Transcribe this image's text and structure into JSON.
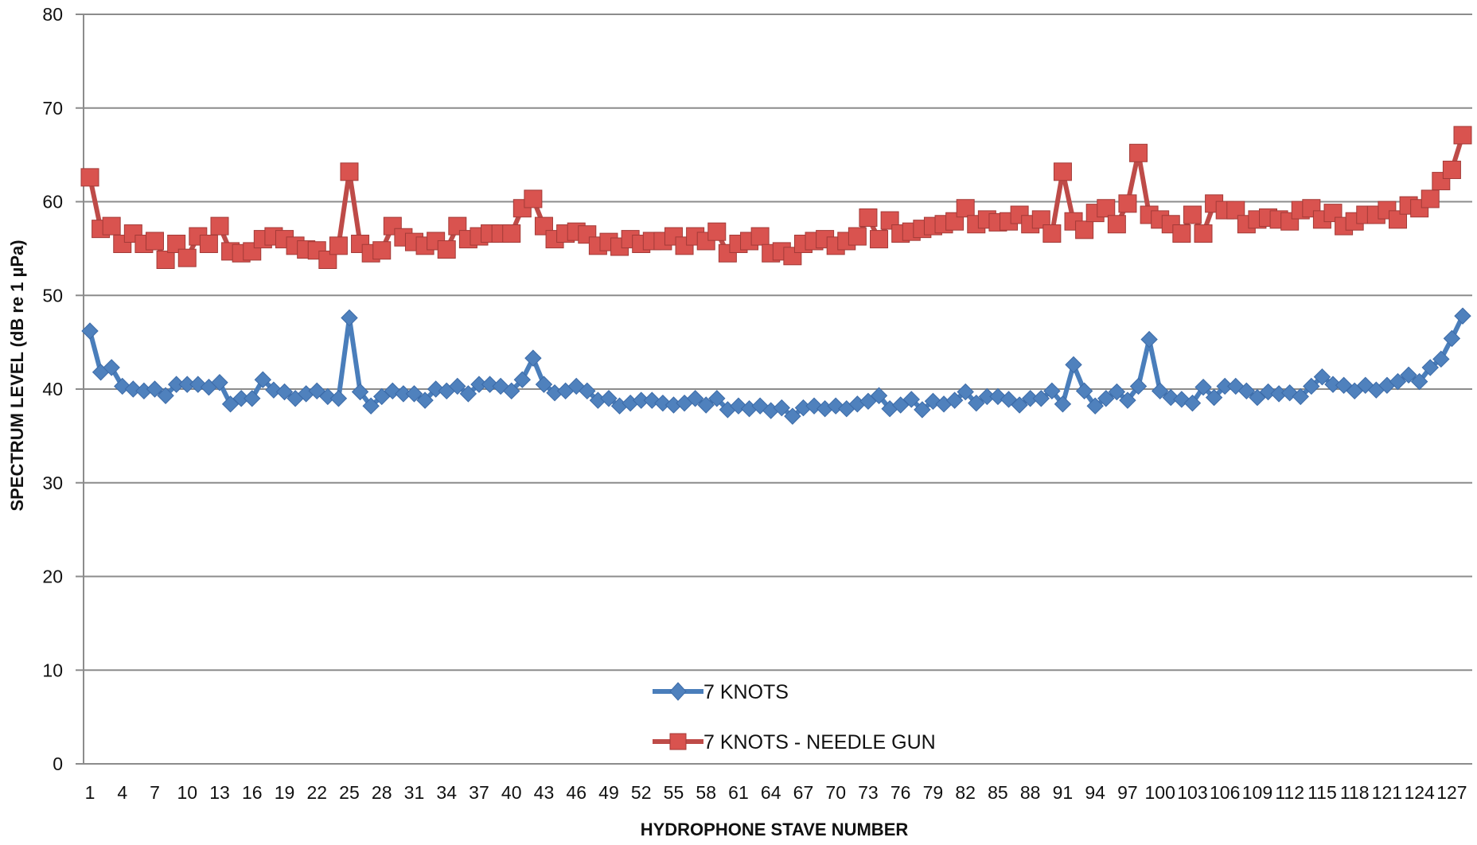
{
  "chart_data": {
    "type": "line",
    "title": "",
    "xlabel": "HYDROPHONE STAVE NUMBER",
    "ylabel": "SPECTRUM LEVEL (dB re 1 µPa)",
    "ylim": [
      0,
      80
    ],
    "yticks": [
      0,
      10,
      20,
      30,
      40,
      50,
      60,
      70,
      80
    ],
    "grid": "horizontal major gridlines",
    "legend_position": "bottom-center inside plot",
    "x": [
      1,
      2,
      3,
      4,
      5,
      6,
      7,
      8,
      9,
      10,
      11,
      12,
      13,
      14,
      15,
      16,
      17,
      18,
      19,
      20,
      21,
      22,
      23,
      24,
      25,
      26,
      27,
      28,
      29,
      30,
      31,
      32,
      33,
      34,
      35,
      36,
      37,
      38,
      39,
      40,
      41,
      42,
      43,
      44,
      45,
      46,
      47,
      48,
      49,
      50,
      51,
      52,
      53,
      54,
      55,
      56,
      57,
      58,
      59,
      60,
      61,
      62,
      63,
      64,
      65,
      66,
      67,
      68,
      69,
      70,
      71,
      72,
      73,
      74,
      75,
      76,
      77,
      78,
      79,
      80,
      81,
      82,
      83,
      84,
      85,
      86,
      87,
      88,
      89,
      90,
      91,
      92,
      93,
      94,
      95,
      96,
      97,
      98,
      99,
      100,
      101,
      102,
      103,
      104,
      105,
      106,
      107,
      108,
      109,
      110,
      111,
      112,
      113,
      114,
      115,
      116,
      117,
      118,
      119,
      120,
      121,
      122,
      123,
      124,
      125,
      126,
      127,
      128
    ],
    "x_tick_labels": [
      "1",
      "4",
      "7",
      "10",
      "13",
      "16",
      "19",
      "22",
      "25",
      "28",
      "31",
      "34",
      "37",
      "40",
      "43",
      "46",
      "49",
      "52",
      "55",
      "58",
      "61",
      "64",
      "67",
      "70",
      "73",
      "76",
      "79",
      "82",
      "85",
      "88",
      "91",
      "94",
      "97",
      "100",
      "103",
      "106",
      "109",
      "112",
      "115",
      "118",
      "121",
      "124",
      "127"
    ],
    "series": [
      {
        "name": "7 KNOTS",
        "color": "#4A7EBB",
        "marker": "diamond",
        "values": [
          46.2,
          41.8,
          42.3,
          40.3,
          40.0,
          39.8,
          40.0,
          39.3,
          40.5,
          40.5,
          40.5,
          40.2,
          40.7,
          38.4,
          39.0,
          39.0,
          41.0,
          39.9,
          39.7,
          39.0,
          39.5,
          39.8,
          39.2,
          39.0,
          47.6,
          39.7,
          38.2,
          39.2,
          39.8,
          39.5,
          39.5,
          38.8,
          40.0,
          39.8,
          40.3,
          39.5,
          40.5,
          40.5,
          40.3,
          39.8,
          41.0,
          43.3,
          40.5,
          39.6,
          39.8,
          40.3,
          39.8,
          38.8,
          39.0,
          38.2,
          38.5,
          38.8,
          38.8,
          38.5,
          38.3,
          38.5,
          39.0,
          38.3,
          39.0,
          37.8,
          38.2,
          37.9,
          38.2,
          37.7,
          38.0,
          37.1,
          38.0,
          38.2,
          37.9,
          38.2,
          37.9,
          38.4,
          38.7,
          39.3,
          37.9,
          38.3,
          38.9,
          37.8,
          38.7,
          38.4,
          38.8,
          39.7,
          38.5,
          39.2,
          39.2,
          38.9,
          38.3,
          39.0,
          39.0,
          39.8,
          38.4,
          42.6,
          39.8,
          38.2,
          39.0,
          39.7,
          38.8,
          40.3,
          45.3,
          39.8,
          39.1,
          38.9,
          38.5,
          40.2,
          39.1,
          40.3,
          40.3,
          39.8,
          39.1,
          39.7,
          39.5,
          39.6,
          39.2,
          40.3,
          41.3,
          40.5,
          40.4,
          39.8,
          40.4,
          39.9,
          40.4,
          40.8,
          41.5,
          40.8,
          42.3,
          43.2,
          45.4,
          47.8
        ]
      },
      {
        "name": "7 KNOTS - NEEDLE GUN",
        "color": "#BE4B48",
        "marker": "square",
        "values": [
          62.6,
          57.1,
          57.4,
          55.5,
          56.6,
          55.5,
          55.8,
          53.8,
          55.5,
          54.0,
          56.3,
          55.5,
          57.4,
          54.7,
          54.5,
          54.7,
          56.0,
          56.3,
          56.0,
          55.3,
          54.9,
          54.8,
          53.8,
          55.3,
          63.2,
          55.5,
          54.5,
          54.8,
          57.4,
          56.2,
          55.7,
          55.3,
          55.8,
          54.9,
          57.4,
          56.0,
          56.3,
          56.6,
          56.6,
          56.6,
          59.3,
          60.3,
          57.4,
          56.0,
          56.6,
          56.8,
          56.5,
          55.3,
          55.7,
          55.2,
          56.0,
          55.5,
          55.8,
          55.8,
          56.3,
          55.3,
          56.3,
          55.8,
          56.8,
          54.5,
          55.5,
          55.8,
          56.3,
          54.5,
          54.7,
          54.2,
          55.5,
          55.8,
          56.0,
          55.3,
          55.8,
          56.3,
          58.3,
          56.0,
          58.0,
          56.6,
          56.8,
          57.1,
          57.4,
          57.6,
          57.9,
          59.3,
          57.6,
          58.1,
          57.8,
          57.9,
          58.6,
          57.6,
          58.1,
          56.6,
          63.2,
          57.9,
          57.0,
          58.8,
          59.3,
          57.6,
          59.8,
          65.2,
          58.6,
          58.1,
          57.6,
          56.6,
          58.6,
          56.6,
          59.8,
          59.1,
          59.1,
          57.6,
          58.1,
          58.3,
          58.1,
          57.9,
          59.1,
          59.3,
          58.1,
          58.8,
          57.4,
          57.9,
          58.6,
          58.6,
          59.1,
          58.1,
          59.6,
          59.3,
          60.3,
          62.2,
          63.4,
          67.1
        ]
      }
    ]
  }
}
